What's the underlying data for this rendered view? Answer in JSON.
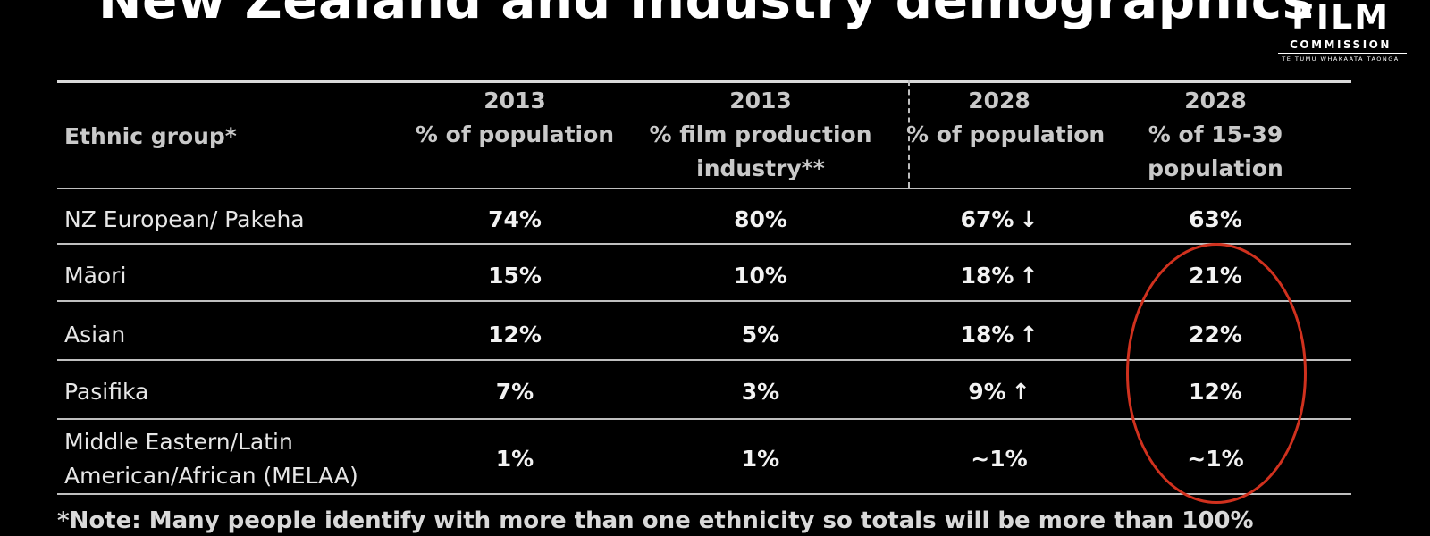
{
  "slide": {
    "title": "New Zealand and industry demographics",
    "note": "*Note: Many people identify with more than one ethnicity so totals will be more than 100%"
  },
  "logo": {
    "film": "FILM",
    "commission": "COMMISSION",
    "subtitle": "TE TUMU WHAKAATA TAONGA"
  },
  "table": {
    "headers": [
      [
        "Ethnic group*"
      ],
      [
        "2013",
        "% of population"
      ],
      [
        "2013",
        "% film production",
        "industry**"
      ],
      [
        "2028",
        "% of population"
      ],
      [
        "2028",
        "% of 15-39",
        "population"
      ]
    ],
    "rows": [
      {
        "group": [
          "NZ European/ Pakeha"
        ],
        "pop2013": "74%",
        "film2013": "80%",
        "pop2028": "67%",
        "trend": "down-arrow",
        "young2028": "63%"
      },
      {
        "group": [
          "Māori"
        ],
        "pop2013": "15%",
        "film2013": "10%",
        "pop2028": "18%",
        "trend": "up-arrow",
        "young2028": "21%"
      },
      {
        "group": [
          "Asian"
        ],
        "pop2013": "12%",
        "film2013": "5%",
        "pop2028": "18%",
        "trend": "up-arrow",
        "young2028": "22%"
      },
      {
        "group": [
          "Pasifika"
        ],
        "pop2013": "7%",
        "film2013": "3%",
        "pop2028": "9%",
        "trend": "up-arrow",
        "young2028": "12%"
      },
      {
        "group": [
          "Middle Eastern/Latin",
          "American/African (MELAA)"
        ],
        "pop2013": "1%",
        "film2013": "1%",
        "pop2028": "~1%",
        "trend": "",
        "young2028": "~1%"
      }
    ]
  },
  "colors": {
    "background": "#000000",
    "text": "#e6e6e6",
    "highlight_ring": "#d0311e"
  }
}
